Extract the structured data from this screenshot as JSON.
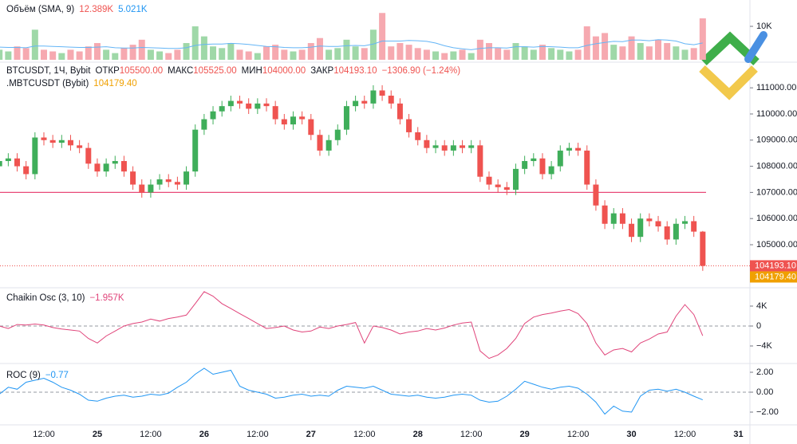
{
  "chart_data": [
    {
      "type": "bar",
      "title": "Объём (SMA, 9)",
      "last_label": "12.389K",
      "sma_label": "5.021K",
      "values": [
        3000,
        2500,
        4000,
        3500,
        9000,
        3000,
        2500,
        2000,
        3000,
        2500,
        4000,
        5000,
        3000,
        2000,
        3500,
        4500,
        6000,
        3000,
        2500,
        2000,
        3000,
        5000,
        10000,
        7000,
        4000,
        3500,
        5000,
        3000,
        2500,
        2000,
        4000,
        4500,
        3000,
        2500,
        3000,
        5000,
        6500,
        3000,
        3500,
        6000,
        4000,
        3500,
        9000,
        14000,
        4000,
        5000,
        4500,
        3500,
        3000,
        2500,
        2000,
        2500,
        3000,
        2000,
        6000,
        5000,
        3500,
        3000,
        5000,
        4000,
        3000,
        4500,
        3500,
        3000,
        2500,
        3000,
        10000,
        7000,
        8000,
        4500,
        4000,
        7000,
        5000,
        4000,
        6000,
        5000,
        4000,
        3000,
        3500,
        12389
      ],
      "sma": [
        3800,
        3700,
        3700,
        3600,
        4100,
        4100,
        4000,
        3900,
        3800,
        3700,
        3700,
        3800,
        3900,
        3600,
        3500,
        3500,
        3700,
        3600,
        3500,
        3400,
        3400,
        3600,
        4300,
        4600,
        4700,
        4700,
        4900,
        4800,
        4600,
        4300,
        4000,
        3900,
        3700,
        3600,
        3600,
        3800,
        4100,
        4000,
        4000,
        4200,
        4300,
        4200,
        4700,
        5600,
        5600,
        5600,
        5800,
        5700,
        5500,
        5000,
        4200,
        3600,
        3300,
        3000,
        3400,
        3600,
        3600,
        3500,
        3900,
        3900,
        3800,
        4000,
        3900,
        3800,
        3600,
        3600,
        4300,
        4800,
        5200,
        5500,
        5400,
        5900,
        5900,
        5700,
        6000,
        5900,
        5600,
        4800,
        4500,
        5021
      ],
      "up_color": "#9fd8a8",
      "down_color": "#f6a9b0",
      "sma_color": "#64b5f6",
      "ylim": [
        0,
        17400
      ],
      "yticks": [
        {
          "value": 10000,
          "label": "10K"
        }
      ]
    },
    {
      "type": "candlestick",
      "symbol": "BTCUSDT, 1Ч, Bybit",
      "o_label": "ОТКР",
      "o": "105500.00",
      "h_label": "МАКС",
      "h": "105525.00",
      "l_label": "МИН",
      "l": "104000.00",
      "c_label": "ЗАКР",
      "last_label": "104193.10",
      "change": "−1306.90 (−1.24%)",
      "compare": {
        "name": ".MBTCUSDT (Bybit)",
        "value": 104179.4,
        "label": "104179.40",
        "color": "#f0a000"
      },
      "open": [
        108000,
        108200,
        108300,
        108000,
        107700,
        109100,
        109000,
        108900,
        109000,
        108800,
        108700,
        108100,
        107800,
        108100,
        108200,
        107800,
        107300,
        107000,
        107300,
        107500,
        107400,
        107300,
        107800,
        109400,
        109800,
        110100,
        110300,
        110500,
        110400,
        110200,
        110400,
        110300,
        109800,
        109600,
        109900,
        109800,
        109200,
        108600,
        109000,
        109400,
        110300,
        110500,
        110400,
        110900,
        110700,
        110400,
        109800,
        109300,
        109000,
        108700,
        108800,
        108600,
        108800,
        108700,
        108800,
        107600,
        107300,
        107200,
        107100,
        107900,
        108200,
        108300,
        107700,
        108000,
        108600,
        108700,
        108600,
        107300,
        106500,
        105800,
        106200,
        105800,
        105300,
        106000,
        105900,
        105700,
        105200,
        105800,
        105900,
        105500
      ],
      "high": [
        108400,
        108500,
        108500,
        108200,
        109300,
        109300,
        109200,
        109200,
        109200,
        109000,
        108900,
        108300,
        108300,
        108400,
        108400,
        108000,
        107500,
        107500,
        107700,
        107700,
        107600,
        108000,
        109600,
        110000,
        110300,
        110500,
        110700,
        110700,
        110600,
        110600,
        110600,
        110500,
        110000,
        110100,
        110100,
        110000,
        109400,
        109200,
        109600,
        110500,
        110700,
        110700,
        111100,
        111100,
        110900,
        110600,
        110000,
        109500,
        109200,
        109000,
        109000,
        109000,
        109000,
        109000,
        109000,
        107800,
        107500,
        107400,
        108100,
        108400,
        108500,
        108500,
        108200,
        108800,
        108900,
        108900,
        108800,
        107500,
        106700,
        106400,
        106400,
        106000,
        106200,
        106200,
        106100,
        105900,
        106000,
        106100,
        106100,
        105525
      ],
      "low": [
        107800,
        108000,
        107800,
        107500,
        107500,
        108800,
        108700,
        108700,
        108600,
        108500,
        107900,
        107600,
        107600,
        107900,
        107600,
        107100,
        106800,
        106800,
        107100,
        107200,
        107100,
        107100,
        107600,
        109200,
        109600,
        109900,
        110100,
        110200,
        110000,
        110000,
        110100,
        109600,
        109400,
        109400,
        109600,
        109000,
        108400,
        108400,
        108800,
        109200,
        110100,
        110200,
        110200,
        110500,
        110200,
        109600,
        109100,
        108800,
        108500,
        108500,
        108400,
        108400,
        108500,
        108500,
        107400,
        107100,
        107000,
        106900,
        106900,
        107700,
        108000,
        107500,
        107500,
        107800,
        108400,
        108400,
        107100,
        106300,
        105600,
        105600,
        105600,
        105100,
        105100,
        105700,
        105500,
        105000,
        105000,
        105600,
        105300,
        104000
      ],
      "close": [
        108200,
        108300,
        108000,
        107700,
        109100,
        109000,
        108900,
        109000,
        108800,
        108700,
        108100,
        107800,
        108100,
        108200,
        107800,
        107300,
        107000,
        107300,
        107500,
        107400,
        107300,
        107800,
        109400,
        109800,
        110100,
        110300,
        110500,
        110400,
        110200,
        110400,
        110300,
        109800,
        109600,
        109900,
        109800,
        109200,
        108600,
        109000,
        109400,
        110300,
        110500,
        110400,
        110900,
        110700,
        110400,
        109800,
        109300,
        109000,
        108700,
        108800,
        108600,
        108800,
        108700,
        108800,
        107600,
        107300,
        107200,
        107100,
        107900,
        108200,
        108300,
        107700,
        108000,
        108600,
        108700,
        108600,
        107300,
        106500,
        105800,
        106200,
        105800,
        105300,
        106000,
        105900,
        105700,
        105200,
        105800,
        105900,
        105500,
        104193.1
      ],
      "up_color": "#3fae5a",
      "down_color": "#ef5350",
      "hline": 107000,
      "hline_color": "#e84a78",
      "ylim": [
        103384,
        111920
      ],
      "yticks": [
        {
          "value": 111000,
          "label": "111000.00"
        },
        {
          "value": 110000,
          "label": "110000.00"
        },
        {
          "value": 109000,
          "label": "109000.00"
        },
        {
          "value": 108000,
          "label": "108000.00"
        },
        {
          "value": 107000,
          "label": "107000.00"
        },
        {
          "value": 106000,
          "label": "106000.00"
        },
        {
          "value": 105000,
          "label": "105000.00"
        }
      ]
    },
    {
      "type": "line",
      "title": "Chaikin Osc (3, 10)",
      "last_label": "−1.957K",
      "color": "#e0447a",
      "values": [
        0,
        -500,
        300,
        200,
        400,
        200,
        -300,
        -600,
        -800,
        -1000,
        -2500,
        -3400,
        -2000,
        -1000,
        0,
        500,
        800,
        1400,
        1000,
        1500,
        1800,
        2200,
        4500,
        6900,
        6000,
        4500,
        3500,
        2500,
        1500,
        500,
        -500,
        -300,
        0,
        -800,
        -1200,
        -1000,
        -200,
        -500,
        0,
        300,
        700,
        -3400,
        0,
        -300,
        -800,
        -1600,
        -1200,
        -1000,
        -500,
        -800,
        -400,
        200,
        600,
        800,
        -5000,
        -6500,
        -5800,
        -4500,
        -2500,
        500,
        1800,
        2300,
        2600,
        3000,
        3300,
        2500,
        500,
        -3400,
        -5800,
        -4800,
        -4500,
        -5200,
        -3400,
        -2600,
        -1600,
        -1200,
        2000,
        4300,
        2300,
        -1957
      ],
      "ylim": [
        -7360,
        7520
      ],
      "yticks": [
        {
          "value": 4000,
          "label": "4K"
        },
        0,
        {
          "value": -4000,
          "label": "−4K"
        }
      ]
    },
    {
      "type": "line",
      "title": "ROC (9)",
      "last_label": "−0.77",
      "color": "#2196f3",
      "values": [
        -0.2,
        0.5,
        0.3,
        1.0,
        1.2,
        1.4,
        1.0,
        0.5,
        0.2,
        -0.2,
        -0.8,
        -0.9,
        -0.6,
        -0.4,
        -0.3,
        -0.5,
        -0.4,
        -0.2,
        -0.3,
        -0.1,
        0.5,
        1.0,
        1.8,
        2.4,
        1.8,
        2.0,
        2.2,
        0.6,
        0.2,
        0,
        -0.2,
        -0.6,
        -0.5,
        -0.3,
        -0.2,
        -0.4,
        -0.3,
        -0.4,
        0.2,
        0.6,
        0.5,
        0.4,
        0.6,
        0.2,
        -0.2,
        -0.3,
        -0.4,
        -0.3,
        -0.5,
        -0.6,
        -0.5,
        -0.3,
        -0.2,
        -0.3,
        -0.8,
        -1.0,
        -0.9,
        -0.4,
        0.3,
        1.1,
        0.8,
        0.5,
        0.3,
        0.5,
        0.6,
        0.4,
        -0.2,
        -1.0,
        -2.2,
        -1.4,
        -1.9,
        -2.0,
        -0.4,
        0.2,
        0.3,
        0.1,
        0.3,
        0,
        -0.4,
        -0.77
      ],
      "ylim": [
        -3.2,
        2.8
      ],
      "yticks": [
        {
          "value": 2,
          "label": "2.00"
        },
        {
          "value": 0,
          "label": "0.00"
        },
        {
          "value": -2,
          "label": "−2.00"
        }
      ]
    }
  ],
  "x_axis_labels": [
    "12:00",
    "25",
    "12:00",
    "26",
    "12:00",
    "27",
    "12:00",
    "28",
    "12:00",
    "29",
    "12:00",
    "30",
    "12:00",
    "31"
  ]
}
